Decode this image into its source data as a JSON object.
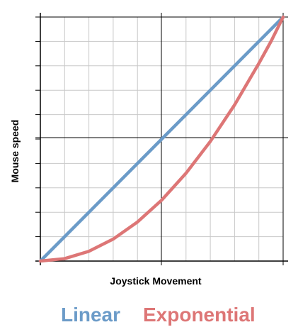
{
  "chart_data": {
    "type": "line",
    "title": "",
    "xlabel": "Joystick Movement",
    "ylabel": "Mouse speed",
    "xlim": [
      0,
      1
    ],
    "ylim": [
      0,
      1
    ],
    "grid": true,
    "minor_divisions": 10,
    "legend": "bottom",
    "series": [
      {
        "name": "Linear",
        "color": "#6b9bc8",
        "x": [
          0,
          0.5,
          1
        ],
        "y": [
          0,
          0.5,
          1
        ]
      },
      {
        "name": "Exponential",
        "color": "#dd7676",
        "x": [
          0,
          0.1,
          0.2,
          0.3,
          0.4,
          0.5,
          0.6,
          0.7,
          0.8,
          0.9,
          0.95,
          1
        ],
        "y": [
          0,
          0.01,
          0.04,
          0.09,
          0.16,
          0.25,
          0.36,
          0.49,
          0.64,
          0.81,
          0.9,
          1
        ]
      }
    ]
  }
}
